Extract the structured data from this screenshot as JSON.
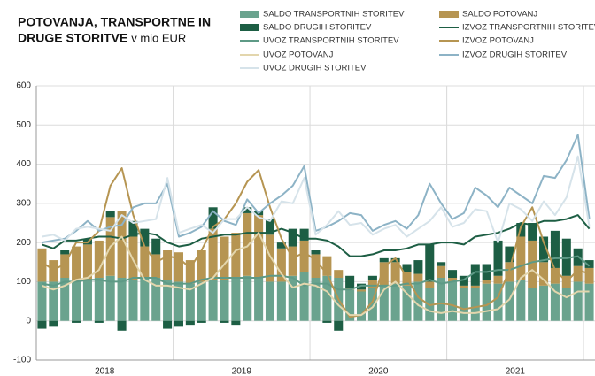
{
  "chart_data": {
    "type": "combo",
    "title": [
      "POTOVANJA, TRANSPORTNE IN",
      "DRUGE STORITVE"
    ],
    "subtitle": "v mio EUR",
    "categories": [
      null,
      null,
      null,
      null,
      null,
      null,
      null,
      null,
      null,
      null,
      null,
      null,
      null,
      null,
      null,
      null,
      null,
      null,
      null,
      null,
      null,
      null,
      null,
      null,
      null,
      null,
      null,
      null,
      null,
      null,
      null,
      null,
      null,
      null,
      null,
      null,
      null,
      null,
      null,
      null,
      null,
      null,
      null,
      null,
      null,
      null,
      null,
      null,
      null
    ],
    "year_labels": [
      "2018",
      "2019",
      "2020",
      "2021"
    ],
    "ylim": [
      -100,
      600
    ],
    "yticks": [
      -100,
      0,
      100,
      200,
      300,
      400,
      500,
      600
    ],
    "grid": true,
    "series": [
      {
        "name": "SALDO TRANSPORTNIH STORITEV",
        "kind": "bar",
        "color": "#6aa38e",
        "values": [
          100,
          100,
          110,
          100,
          105,
          110,
          115,
          110,
          105,
          110,
          110,
          105,
          100,
          95,
          100,
          105,
          105,
          110,
          115,
          110,
          100,
          100,
          115,
          125,
          110,
          115,
          110,
          80,
          75,
          85,
          90,
          95,
          90,
          100,
          85,
          110,
          100,
          85,
          85,
          95,
          95,
          100,
          105,
          85,
          90,
          95,
          85,
          100,
          95
        ]
      },
      {
        "name": "SALDO POTOVANJ",
        "kind": "bar",
        "color": "#b69552",
        "values": [
          85,
          55,
          60,
          90,
          90,
          95,
          150,
          170,
          110,
          80,
          60,
          75,
          75,
          60,
          80,
          130,
          110,
          115,
          160,
          160,
          120,
          85,
          75,
          80,
          60,
          50,
          20,
          5,
          5,
          20,
          60,
          55,
          35,
          20,
          15,
          30,
          10,
          5,
          5,
          10,
          20,
          50,
          110,
          120,
          60,
          40,
          30,
          40,
          40
        ]
      },
      {
        "name": "SALDO DRUGIH STORITEV",
        "kind": "bar",
        "color": "#1d5e44",
        "values": [
          -20,
          -15,
          10,
          -5,
          15,
          -5,
          15,
          -25,
          40,
          45,
          40,
          -20,
          -15,
          -10,
          -5,
          55,
          -5,
          -10,
          15,
          10,
          40,
          15,
          45,
          30,
          10,
          -5,
          -25,
          30,
          15,
          10,
          10,
          10,
          20,
          35,
          95,
          10,
          20,
          25,
          55,
          40,
          90,
          40,
          35,
          45,
          65,
          95,
          95,
          45,
          20
        ]
      },
      {
        "name": "IZVOZ TRANSPORTNIH STORITEV",
        "kind": "line",
        "color": "#1d5e44",
        "values": [
          195,
          185,
          205,
          205,
          210,
          215,
          215,
          210,
          220,
          225,
          220,
          200,
          190,
          195,
          210,
          215,
          220,
          220,
          225,
          225,
          225,
          235,
          225,
          210,
          210,
          205,
          190,
          165,
          165,
          170,
          180,
          180,
          185,
          195,
          195,
          200,
          200,
          195,
          215,
          220,
          225,
          235,
          250,
          245,
          255,
          255,
          260,
          270,
          235
        ]
      },
      {
        "name": "UVOZ TRANSPORTNIH STORITEV",
        "kind": "line",
        "color": "#5e9a86",
        "values": [
          95,
          90,
          100,
          100,
          105,
          105,
          100,
          100,
          110,
          110,
          110,
          95,
          95,
          95,
          105,
          110,
          110,
          110,
          110,
          110,
          115,
          115,
          110,
          90,
          95,
          95,
          80,
          80,
          90,
          90,
          90,
          90,
          95,
          95,
          105,
          95,
          100,
          105,
          125,
          125,
          130,
          130,
          140,
          150,
          155,
          160,
          160,
          165,
          140
        ]
      },
      {
        "name": "IZVOZ POTOVANJ",
        "kind": "line",
        "color": "#b69552",
        "values": [
          150,
          130,
          145,
          200,
          200,
          230,
          345,
          390,
          270,
          190,
          150,
          165,
          160,
          135,
          180,
          240,
          260,
          300,
          355,
          385,
          290,
          210,
          160,
          175,
          155,
          120,
          55,
          10,
          15,
          50,
          140,
          160,
          110,
          60,
          40,
          45,
          40,
          30,
          35,
          40,
          60,
          130,
          240,
          290,
          200,
          130,
          100,
          130,
          120
        ]
      },
      {
        "name": "UVOZ POTOVANJ",
        "kind": "line",
        "color": "#e3d6ad",
        "values": [
          90,
          80,
          90,
          105,
          110,
          130,
          190,
          215,
          155,
          105,
          90,
          90,
          85,
          80,
          95,
          110,
          145,
          180,
          190,
          225,
          165,
          120,
          85,
          95,
          90,
          75,
          40,
          15,
          15,
          35,
          80,
          100,
          70,
          40,
          25,
          20,
          25,
          20,
          20,
          25,
          30,
          55,
          110,
          130,
          105,
          75,
          60,
          75,
          75
        ]
      },
      {
        "name": "IZVOZ DRUGIH STORITEV",
        "kind": "line",
        "color": "#8db3c6",
        "values": [
          200,
          205,
          210,
          230,
          255,
          230,
          240,
          245,
          290,
          300,
          300,
          350,
          215,
          225,
          240,
          280,
          255,
          245,
          310,
          275,
          300,
          320,
          345,
          395,
          230,
          240,
          255,
          275,
          270,
          230,
          245,
          255,
          235,
          270,
          350,
          300,
          260,
          275,
          340,
          320,
          290,
          340,
          320,
          300,
          370,
          365,
          410,
          475,
          260
        ]
      },
      {
        "name": "UVOZ DRUGIH STORITEV",
        "kind": "line",
        "color": "#d6e3ea",
        "values": [
          215,
          220,
          205,
          235,
          240,
          235,
          230,
          270,
          250,
          255,
          260,
          365,
          225,
          235,
          245,
          225,
          260,
          260,
          290,
          265,
          255,
          305,
          300,
          365,
          220,
          245,
          280,
          245,
          250,
          220,
          235,
          245,
          215,
          235,
          255,
          290,
          240,
          250,
          285,
          280,
          200,
          300,
          285,
          255,
          305,
          270,
          315,
          420,
          240
        ]
      }
    ]
  }
}
